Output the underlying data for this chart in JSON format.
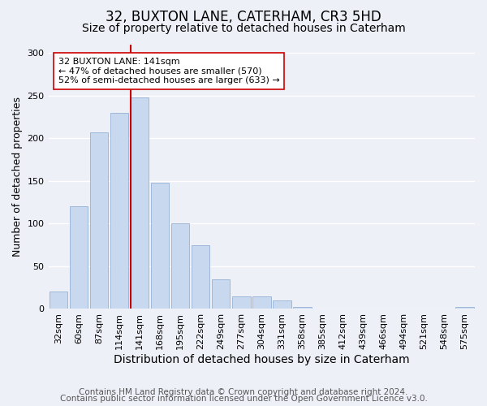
{
  "title": "32, BUXTON LANE, CATERHAM, CR3 5HD",
  "subtitle": "Size of property relative to detached houses in Caterham",
  "xlabel": "Distribution of detached houses by size in Caterham",
  "ylabel": "Number of detached properties",
  "bar_labels": [
    "32sqm",
    "60sqm",
    "87sqm",
    "114sqm",
    "141sqm",
    "168sqm",
    "195sqm",
    "222sqm",
    "249sqm",
    "277sqm",
    "304sqm",
    "331sqm",
    "358sqm",
    "385sqm",
    "412sqm",
    "439sqm",
    "466sqm",
    "494sqm",
    "521sqm",
    "548sqm",
    "575sqm"
  ],
  "bar_values": [
    20,
    120,
    207,
    230,
    248,
    148,
    100,
    75,
    35,
    15,
    15,
    10,
    2,
    0,
    0,
    0,
    0,
    0,
    0,
    0,
    2
  ],
  "bar_color": "#c8d8ee",
  "bar_edge_color": "#a0b8d8",
  "highlight_bar_index": 4,
  "highlight_line_color": "#cc0000",
  "annotation_text": "32 BUXTON LANE: 141sqm\n← 47% of detached houses are smaller (570)\n52% of semi-detached houses are larger (633) →",
  "annotation_box_color": "#ffffff",
  "annotation_box_edge": "#cc0000",
  "ylim": [
    0,
    310
  ],
  "yticks": [
    0,
    50,
    100,
    150,
    200,
    250,
    300
  ],
  "footer1": "Contains HM Land Registry data © Crown copyright and database right 2024.",
  "footer2": "Contains public sector information licensed under the Open Government Licence v3.0.",
  "bg_color": "#eef0f8",
  "grid_color": "#ffffff",
  "title_fontsize": 12,
  "subtitle_fontsize": 10,
  "xlabel_fontsize": 10,
  "ylabel_fontsize": 9,
  "tick_fontsize": 8,
  "footer_fontsize": 7.5
}
